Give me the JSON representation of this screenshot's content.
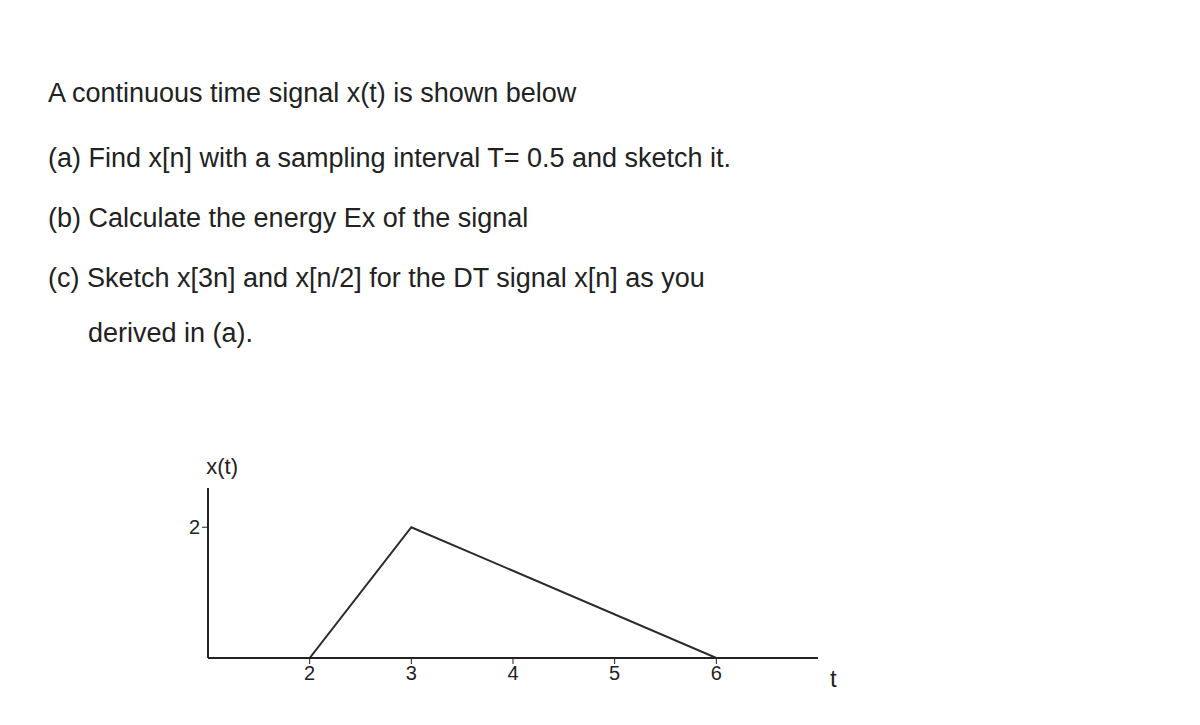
{
  "lines": [
    "A continuous time signal x(t) is shown below",
    "(a) Find x[n] with a sampling interval T= 0.5 and sketch it.",
    "(b) Calculate the energy Ex of the signal",
    "(c) Sketch x[3n] and x[n/2] for the DT signal x[n] as you",
    "derived in (a)."
  ],
  "chart_data": {
    "type": "line",
    "x_label": "t",
    "y_label": "x(t)",
    "x": [
      2,
      3,
      6
    ],
    "values": [
      0,
      2,
      0
    ],
    "color": "#2a2a2a",
    "xlim": [
      1,
      7
    ],
    "xticks": [
      2,
      3,
      4,
      5,
      6
    ],
    "ylim": [
      0,
      2.6
    ],
    "yticks": [
      2
    ],
    "grid": false
  }
}
